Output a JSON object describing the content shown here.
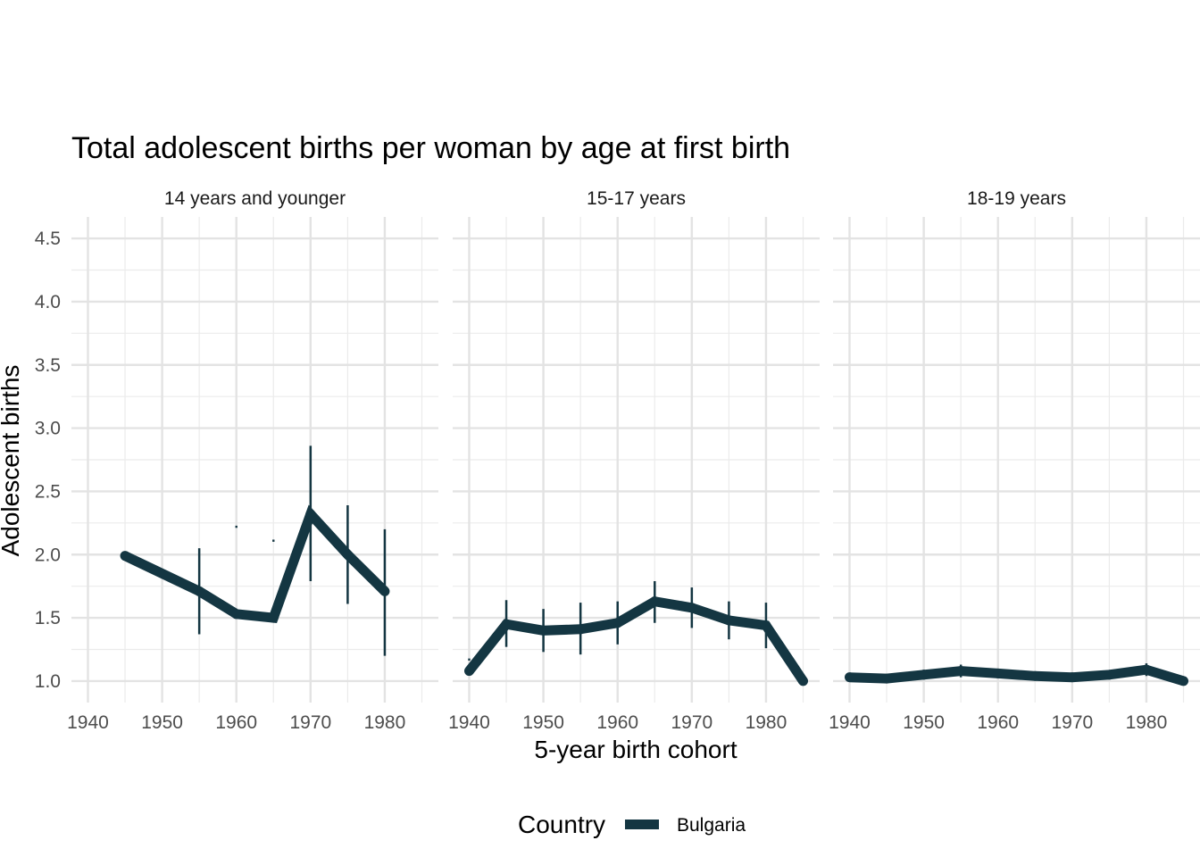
{
  "chart_data": {
    "type": "line",
    "title": "Total adolescent births per woman by age at first birth",
    "xlabel": "5-year birth cohort",
    "ylabel": "Adolescent births",
    "xlim": [
      1940,
      1985
    ],
    "ylim": [
      1.0,
      4.5
    ],
    "x_ticks": [
      "1940",
      "1950",
      "1960",
      "1970",
      "1980"
    ],
    "y_ticks": [
      "1.0",
      "1.5",
      "2.0",
      "2.5",
      "3.0",
      "3.5",
      "4.0",
      "4.5"
    ],
    "grid": true,
    "legend": {
      "title": "Country",
      "position": "bottom",
      "entries": [
        "Bulgaria"
      ]
    },
    "series_color": "#143642",
    "panels": [
      {
        "label": "14 years and younger",
        "points": [
          {
            "x": 1945,
            "y": 1.99
          },
          {
            "x": 1955,
            "y": 1.71,
            "lo": 1.37,
            "hi": 2.05
          },
          {
            "x": 1960,
            "y": 1.53
          },
          {
            "x": 1965,
            "y": 1.5
          },
          {
            "x": 1970,
            "y": 2.32,
            "lo": 1.79,
            "hi": 2.86
          },
          {
            "x": 1975,
            "y": 2.0,
            "lo": 1.61,
            "hi": 2.39
          },
          {
            "x": 1980,
            "y": 1.71,
            "lo": 1.2,
            "hi": 2.2
          }
        ],
        "stray_marks": [
          {
            "x": 1960,
            "y": 2.22
          },
          {
            "x": 1965,
            "y": 2.11
          }
        ]
      },
      {
        "label": "15-17 years",
        "points": [
          {
            "x": 1940,
            "y": 1.08
          },
          {
            "x": 1945,
            "y": 1.45,
            "lo": 1.27,
            "hi": 1.64
          },
          {
            "x": 1950,
            "y": 1.4,
            "lo": 1.23,
            "hi": 1.57
          },
          {
            "x": 1955,
            "y": 1.41,
            "lo": 1.21,
            "hi": 1.62
          },
          {
            "x": 1960,
            "y": 1.46,
            "lo": 1.29,
            "hi": 1.63
          },
          {
            "x": 1965,
            "y": 1.63,
            "lo": 1.46,
            "hi": 1.79
          },
          {
            "x": 1970,
            "y": 1.58,
            "lo": 1.42,
            "hi": 1.74
          },
          {
            "x": 1975,
            "y": 1.48,
            "lo": 1.33,
            "hi": 1.63
          },
          {
            "x": 1980,
            "y": 1.44,
            "lo": 1.26,
            "hi": 1.62
          },
          {
            "x": 1985,
            "y": 1.0
          }
        ],
        "stray_marks": [
          {
            "x": 1940,
            "y": 1.17
          }
        ]
      },
      {
        "label": "18-19 years",
        "points": [
          {
            "x": 1940,
            "y": 1.03,
            "lo": 1.01,
            "hi": 1.06
          },
          {
            "x": 1945,
            "y": 1.02
          },
          {
            "x": 1950,
            "y": 1.05,
            "lo": 1.02,
            "hi": 1.09
          },
          {
            "x": 1955,
            "y": 1.08,
            "lo": 1.03,
            "hi": 1.13
          },
          {
            "x": 1960,
            "y": 1.06
          },
          {
            "x": 1965,
            "y": 1.04
          },
          {
            "x": 1970,
            "y": 1.03
          },
          {
            "x": 1975,
            "y": 1.05,
            "lo": 1.02,
            "hi": 1.08
          },
          {
            "x": 1980,
            "y": 1.09,
            "lo": 1.04,
            "hi": 1.14
          },
          {
            "x": 1985,
            "y": 1.0
          }
        ]
      }
    ]
  }
}
